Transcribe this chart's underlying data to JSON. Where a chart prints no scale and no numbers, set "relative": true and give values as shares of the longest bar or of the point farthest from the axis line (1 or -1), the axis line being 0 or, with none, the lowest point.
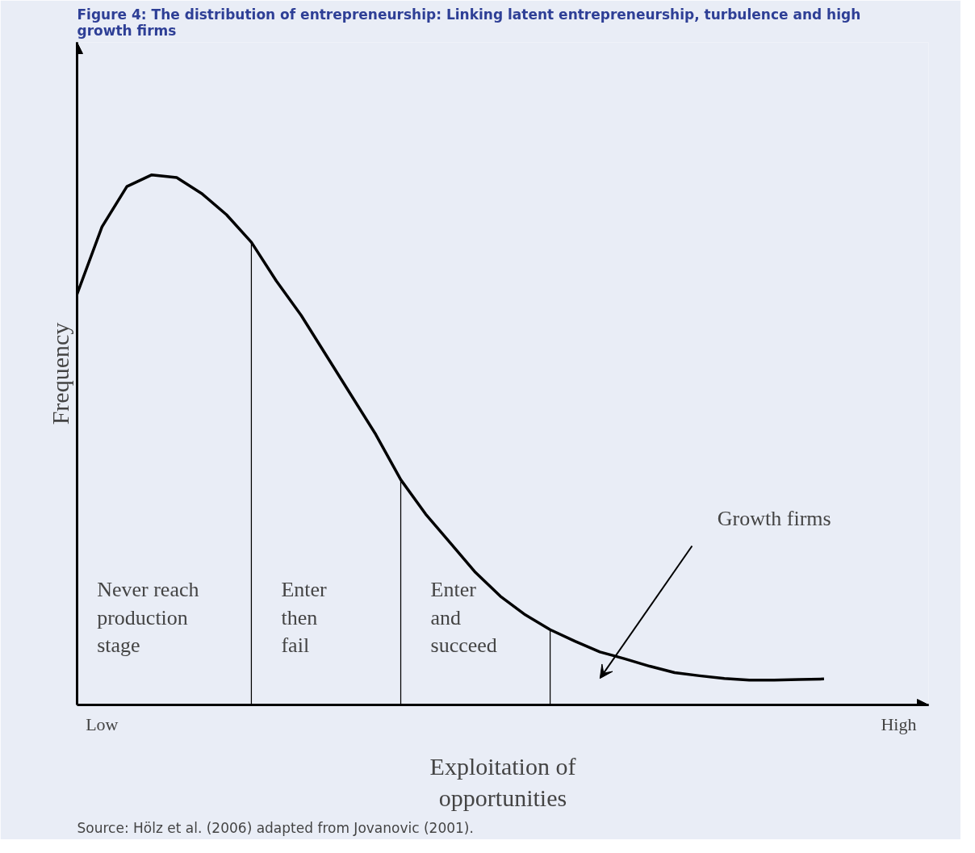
{
  "chart_data": {
    "type": "line",
    "relative": true,
    "title": "Figure 4: The distribution of entrepreneurship: Linking latent entrepreneurship, turbulence and high growth firms",
    "xlabel": "Exploitation of opportunities",
    "ylabel": "Frequency",
    "categories": [
      null,
      "Low",
      null,
      null,
      null,
      null,
      null,
      null,
      null,
      null,
      null,
      null,
      null,
      null,
      null,
      null,
      null,
      null,
      null,
      null,
      null,
      null,
      null,
      null,
      null,
      null,
      null,
      null,
      null,
      null,
      null,
      null,
      null,
      "High"
    ],
    "tick_labels": "x",
    "marker": "none",
    "line_style": "solid",
    "series": [
      {
        "color": "#000000",
        "values": [
          0.775,
          0.902,
          0.978,
          1.0,
          0.995,
          0.965,
          0.925,
          0.873,
          0.8,
          0.735,
          0.66,
          0.585,
          0.51,
          0.425,
          0.36,
          0.305,
          0.25,
          0.205,
          0.17,
          0.142,
          0.12,
          0.1,
          0.087,
          0.073,
          0.061,
          0.055,
          0.05,
          0.047,
          0.047,
          0.048,
          0.049,
          null,
          null,
          null
        ]
      },
      {
        "type": "bar",
        "color": "#000000",
        "values": [
          null,
          null,
          null,
          null,
          null,
          null,
          null,
          0.873,
          null,
          null,
          null,
          null,
          null,
          0.425,
          null,
          null,
          null,
          null,
          null,
          0.142,
          null,
          null,
          null,
          null,
          null,
          null,
          null,
          null,
          null,
          null,
          null,
          null,
          null,
          null
        ]
      }
    ],
    "annotations": [
      "Never reach\nproduction\nstage",
      "Enter\nthen\nfail",
      "Enter\nand\nsucceed",
      "Growth firms",
      "Source: Hölz et al. (2006) adapted from Jovanovic (2001)."
    ]
  }
}
